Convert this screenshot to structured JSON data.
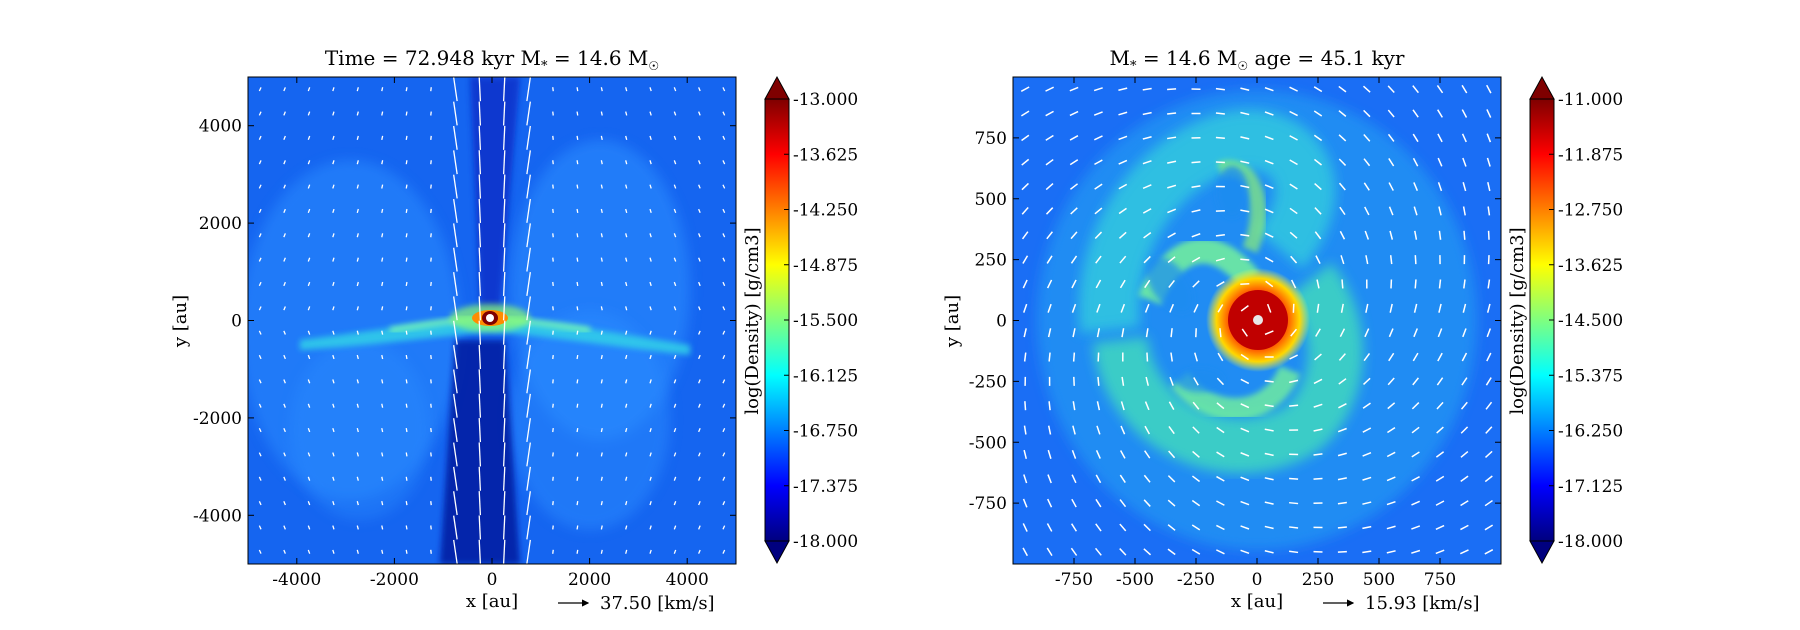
{
  "chart_data": [
    {
      "type": "heatmap",
      "title_parts": {
        "label_time": "Time",
        "time": "72.948",
        "time_unit": "kyr",
        "label_mass": "M",
        "mass": "14.6"
      },
      "xlabel": "x [au]",
      "ylabel": "y [au]",
      "xlim": [
        -5000,
        5000
      ],
      "ylim": [
        -5000,
        5000
      ],
      "x_ticks": [
        -4000,
        -2000,
        0,
        2000,
        4000
      ],
      "y_ticks": [
        -4000,
        -2000,
        0,
        2000,
        4000
      ],
      "x_tick_labels": [
        "-4000",
        "-2000",
        "0",
        "2000",
        "4000"
      ],
      "y_tick_labels": [
        "-4000",
        "-2000",
        "0",
        "2000",
        "4000"
      ],
      "colorbar_label": "log(Density) [g/cm3]",
      "colorbar_range": [
        -18.0,
        -13.0
      ],
      "colorbar_ticks": [
        -13.0,
        -13.625,
        -14.25,
        -14.875,
        -15.5,
        -16.125,
        -16.75,
        -17.375,
        -18.0
      ],
      "colorbar_tick_labels": [
        "-13.000",
        "-13.625",
        "-14.250",
        "-14.875",
        "-15.500",
        "-16.125",
        "-16.750",
        "-17.375",
        "-18.000"
      ],
      "quiver_key": "37.50 [km/s]",
      "colormap": "jet",
      "features": "edge-on disk along y≈-500 au with bipolar outflow cavities; central source at origin"
    },
    {
      "type": "heatmap",
      "title_parts": {
        "label_mass": "M",
        "mass": "14.6",
        "label_age": "age",
        "age": "45.1",
        "age_unit": "kyr"
      },
      "xlabel": "x [au]",
      "ylabel": "y [au]",
      "xlim": [
        -1000,
        1000
      ],
      "ylim": [
        -1000,
        1000
      ],
      "x_ticks": [
        -750,
        -500,
        -250,
        0,
        250,
        500,
        750
      ],
      "y_ticks": [
        -750,
        -500,
        -250,
        0,
        250,
        500,
        750
      ],
      "x_tick_labels": [
        "-750",
        "-500",
        "-250",
        "0",
        "250",
        "500",
        "750"
      ],
      "y_tick_labels": [
        "-750",
        "-500",
        "-250",
        "0",
        "250",
        "500",
        "750"
      ],
      "colorbar_label": "log(Density) [g/cm3]",
      "colorbar_range": [
        -18.0,
        -11.0
      ],
      "colorbar_ticks": [
        -11.0,
        -11.875,
        -12.75,
        -13.625,
        -14.5,
        -15.375,
        -16.25,
        -17.125,
        -18.0
      ],
      "colorbar_tick_labels": [
        "-11.000",
        "-11.875",
        "-12.750",
        "-13.625",
        "-14.500",
        "-15.375",
        "-16.250",
        "-17.125",
        "-18.000"
      ],
      "quiver_key": "15.93 [km/s]",
      "colormap": "jet",
      "features": "face-on spiral disk with central hot core at origin"
    }
  ],
  "colors": {
    "jet": [
      "#00007f",
      "#0000ff",
      "#007fff",
      "#00ffff",
      "#7fff7f",
      "#ffff00",
      "#ff7f00",
      "#ff0000",
      "#7f0000"
    ],
    "vector": "#ffffff"
  }
}
